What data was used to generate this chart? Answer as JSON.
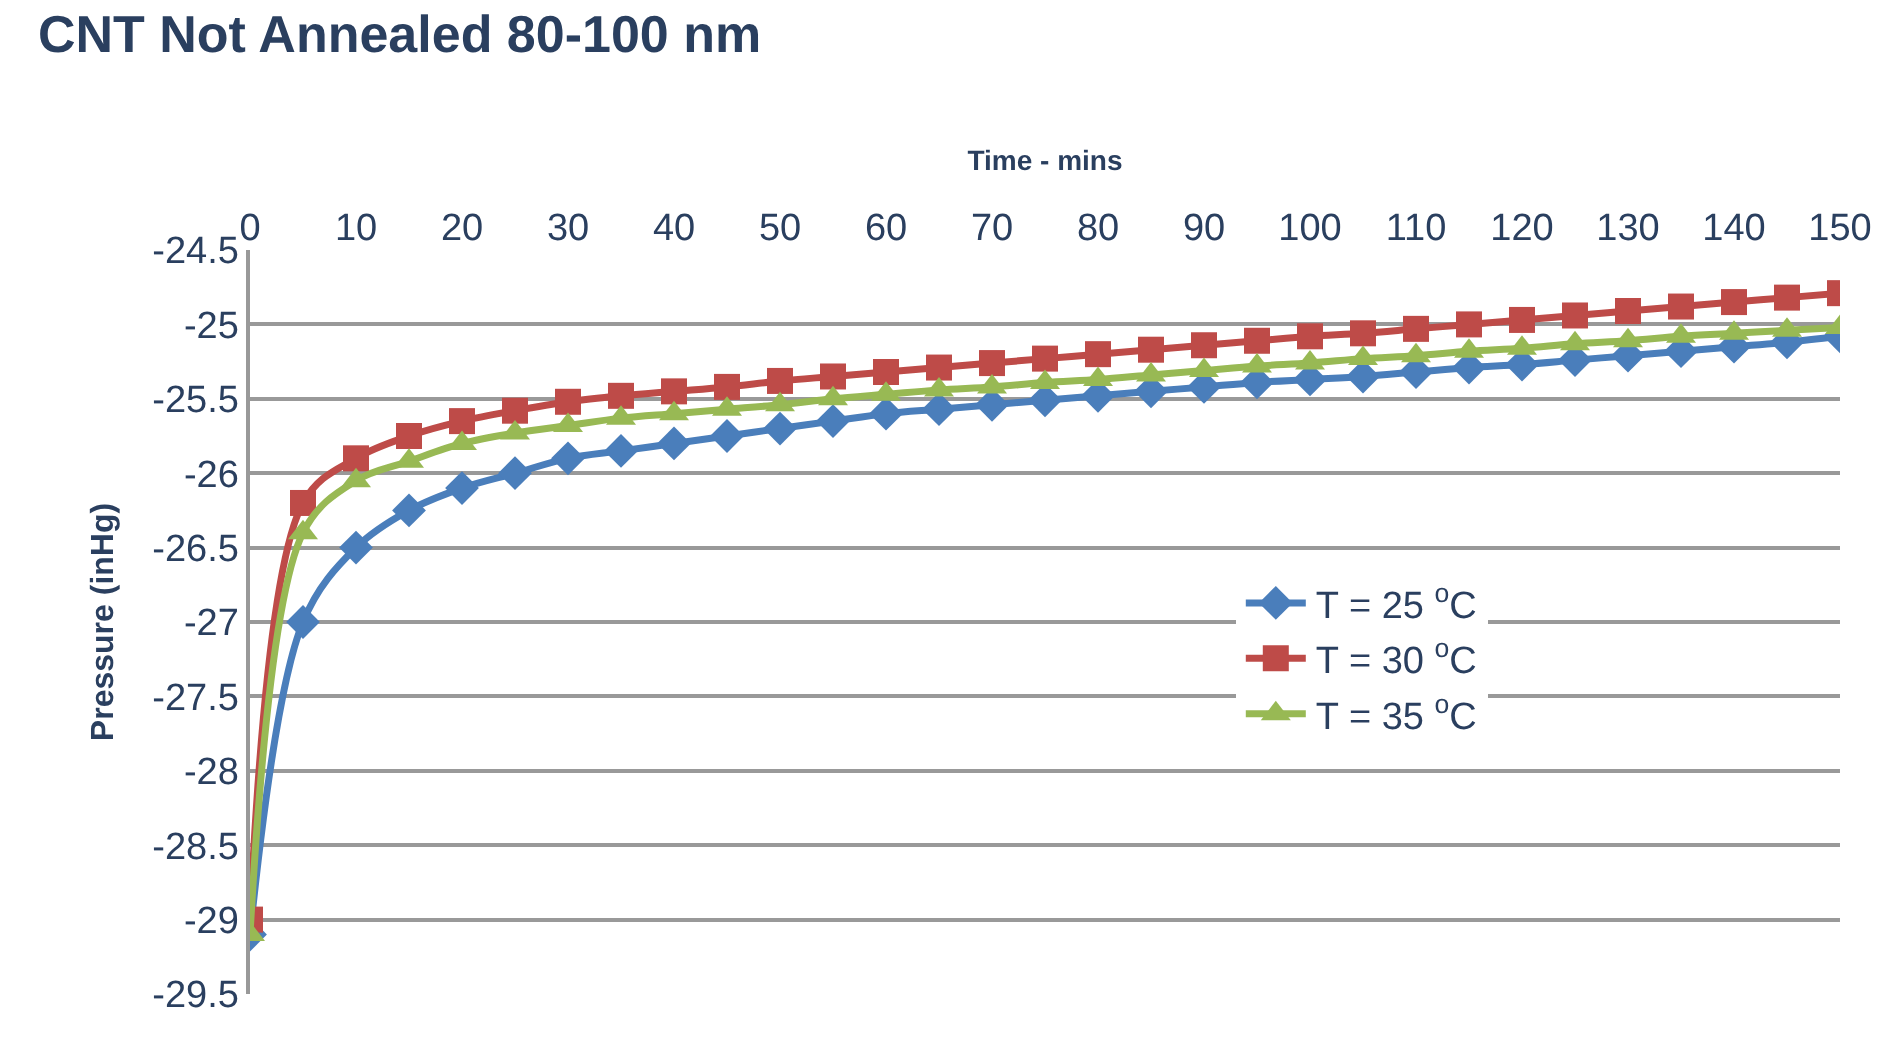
{
  "chart_data": {
    "type": "line",
    "title": "CNT Not Annealed 80-100 nm",
    "xlabel": "Time - mins",
    "ylabel": "Pressure (inHg)",
    "x": [
      0,
      5,
      10,
      15,
      20,
      25,
      30,
      35,
      40,
      45,
      50,
      55,
      60,
      65,
      70,
      75,
      80,
      85,
      90,
      95,
      100,
      105,
      110,
      115,
      120,
      125,
      130,
      135,
      140,
      145,
      150
    ],
    "series": [
      {
        "name": "T = 25 $^{o}$C",
        "color": "#4a7ebb",
        "marker": "diamond",
        "values": [
          -29.1,
          -27.0,
          -26.5,
          -26.25,
          -26.1,
          -26.0,
          -25.9,
          -25.85,
          -25.8,
          -25.75,
          -25.7,
          -25.65,
          -25.6,
          -25.57,
          -25.54,
          -25.51,
          -25.48,
          -25.45,
          -25.42,
          -25.39,
          -25.37,
          -25.35,
          -25.32,
          -25.29,
          -25.27,
          -25.24,
          -25.21,
          -25.18,
          -25.15,
          -25.12,
          -25.08
        ]
      },
      {
        "name": "T = 30 $^{o}$C",
        "color": "#be4b48",
        "marker": "square",
        "values": [
          -29.0,
          -26.2,
          -25.9,
          -25.75,
          -25.65,
          -25.58,
          -25.52,
          -25.48,
          -25.45,
          -25.42,
          -25.38,
          -25.35,
          -25.32,
          -25.29,
          -25.26,
          -25.23,
          -25.2,
          -25.17,
          -25.14,
          -25.11,
          -25.08,
          -25.06,
          -25.03,
          -25.0,
          -24.97,
          -24.94,
          -24.91,
          -24.88,
          -24.85,
          -24.82,
          -24.79
        ]
      },
      {
        "name": "T = 35 $^{o}$C",
        "color": "#98b954",
        "marker": "triangle",
        "values": [
          -29.1,
          -26.4,
          -26.05,
          -25.92,
          -25.8,
          -25.73,
          -25.68,
          -25.63,
          -25.6,
          -25.57,
          -25.54,
          -25.5,
          -25.47,
          -25.44,
          -25.42,
          -25.39,
          -25.37,
          -25.34,
          -25.31,
          -25.28,
          -25.26,
          -25.23,
          -25.21,
          -25.18,
          -25.16,
          -25.13,
          -25.11,
          -25.08,
          -25.06,
          -25.04,
          -25.02
        ]
      }
    ],
    "xlim": [
      0,
      150
    ],
    "xticks": [
      0,
      10,
      20,
      30,
      40,
      50,
      60,
      70,
      80,
      90,
      100,
      110,
      120,
      130,
      140,
      150
    ],
    "ylim": [
      -29.5,
      -24.5
    ],
    "yticks": [
      -29.5,
      -29,
      -28.5,
      -28,
      -27.5,
      -27,
      -26.5,
      -26,
      -25.5,
      -25,
      -24.5
    ],
    "grid": "y",
    "legend": "right",
    "line_style": "solid"
  }
}
